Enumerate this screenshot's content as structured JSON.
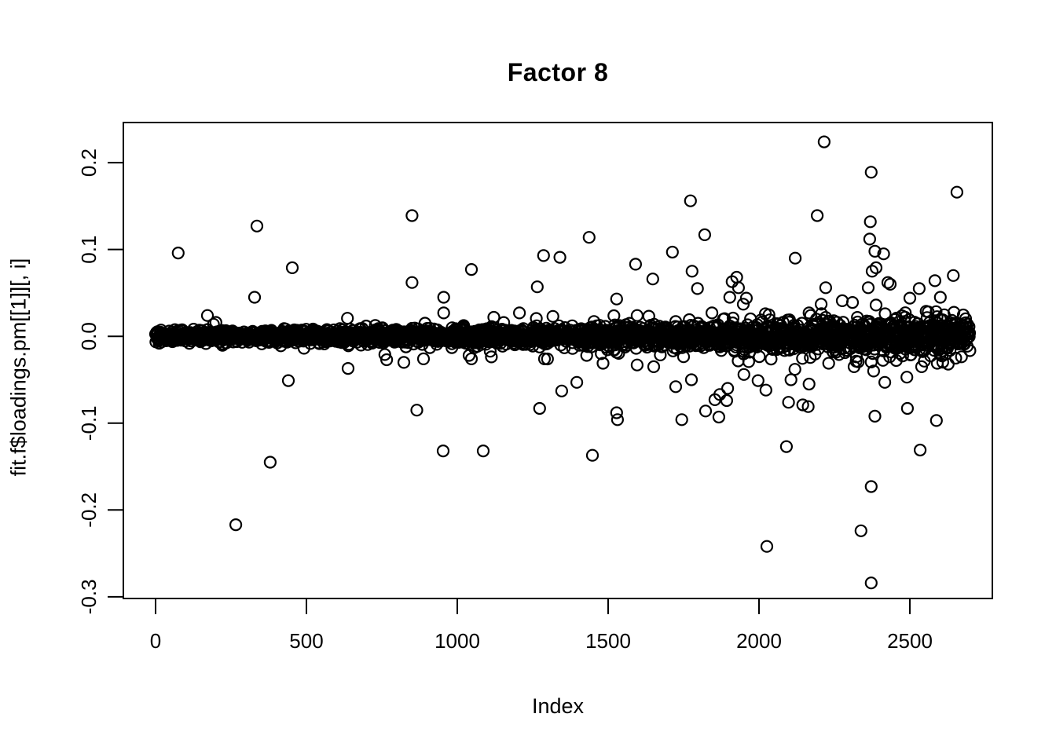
{
  "chart_data": {
    "type": "scatter",
    "title": "Factor 8",
    "xlabel": "Index",
    "ylabel": "fit.f$loadings.pm[[1]][, i]",
    "xlim": [
      0,
      2700
    ],
    "ylim": [
      -0.3,
      0.225
    ],
    "x_ticks": [
      0,
      500,
      1000,
      1500,
      2000,
      2500
    ],
    "x_tick_labels": [
      "0",
      "500",
      "1000",
      "1500",
      "2000",
      "2500"
    ],
    "y_ticks": [
      0.2,
      0.1,
      0.0,
      -0.1,
      -0.2,
      -0.3
    ],
    "y_tick_labels": [
      "0.2",
      "0.1",
      "0.0",
      "-0.1",
      "-0.2",
      "-0.3"
    ],
    "grid": false,
    "legend": null,
    "axis_color": "#000000",
    "marker": {
      "shape": "open-circle",
      "color": "#000000",
      "radius_px": 7,
      "stroke_px": 2.2
    },
    "dense_band": {
      "n": 2700,
      "x_start": 0,
      "x_end": 2700,
      "center": 0.0,
      "sd_base": 0.0035,
      "sd_growth": 0.007,
      "sd_power": 1.8,
      "tail_prob": 0.06,
      "tail_mult": 2.4,
      "clamp": 0.03,
      "seed": 42,
      "description": "~2700 posterior-mean loadings tightly clustered around 0; vertical spread grows with index"
    },
    "outliers": [
      [
        75,
        0.096
      ],
      [
        172,
        0.024
      ],
      [
        200,
        0.016
      ],
      [
        266,
        -0.217
      ],
      [
        328,
        0.045
      ],
      [
        336,
        0.127
      ],
      [
        380,
        -0.145
      ],
      [
        440,
        -0.051
      ],
      [
        453,
        0.079
      ],
      [
        638,
        -0.037
      ],
      [
        760,
        -0.021
      ],
      [
        766,
        -0.027
      ],
      [
        823,
        -0.03
      ],
      [
        850,
        0.139
      ],
      [
        850,
        0.062
      ],
      [
        866,
        -0.085
      ],
      [
        888,
        -0.026
      ],
      [
        909,
        -0.013
      ],
      [
        953,
        -0.132
      ],
      [
        955,
        0.045
      ],
      [
        955,
        0.027
      ],
      [
        982,
        -0.013
      ],
      [
        1039,
        -0.022
      ],
      [
        1047,
        0.077
      ],
      [
        1047,
        -0.026
      ],
      [
        1086,
        -0.132
      ],
      [
        1206,
        0.027
      ],
      [
        1265,
        0.057
      ],
      [
        1273,
        -0.083
      ],
      [
        1286,
        0.093
      ],
      [
        1317,
        0.023
      ],
      [
        1340,
        0.091
      ],
      [
        1346,
        -0.063
      ],
      [
        1382,
        -0.014
      ],
      [
        1396,
        -0.053
      ],
      [
        1429,
        -0.022
      ],
      [
        1437,
        0.114
      ],
      [
        1448,
        -0.137
      ],
      [
        1477,
        -0.02
      ],
      [
        1483,
        -0.031
      ],
      [
        1528,
        0.043
      ],
      [
        1528,
        -0.088
      ],
      [
        1531,
        -0.096
      ],
      [
        1591,
        0.083
      ],
      [
        1596,
        0.024
      ],
      [
        1596,
        -0.033
      ],
      [
        1648,
        0.066
      ],
      [
        1651,
        -0.035
      ],
      [
        1713,
        0.097
      ],
      [
        1724,
        -0.058
      ],
      [
        1744,
        -0.096
      ],
      [
        1773,
        0.156
      ],
      [
        1776,
        -0.05
      ],
      [
        1778,
        0.075
      ],
      [
        1796,
        0.055
      ],
      [
        1820,
        0.117
      ],
      [
        1823,
        -0.086
      ],
      [
        1844,
        0.027
      ],
      [
        1854,
        -0.073
      ],
      [
        1867,
        -0.093
      ],
      [
        1870,
        -0.067
      ],
      [
        1893,
        -0.074
      ],
      [
        1896,
        -0.06
      ],
      [
        1903,
        0.045
      ],
      [
        1911,
        0.063
      ],
      [
        1914,
        0.021
      ],
      [
        1926,
        0.068
      ],
      [
        1932,
        0.056
      ],
      [
        1948,
        0.037
      ],
      [
        1950,
        -0.044
      ],
      [
        1958,
        0.044
      ],
      [
        1997,
        -0.051
      ],
      [
        2021,
        0.026
      ],
      [
        2023,
        -0.062
      ],
      [
        2026,
        -0.242
      ],
      [
        2091,
        -0.127
      ],
      [
        2098,
        -0.076
      ],
      [
        2101,
        0.019
      ],
      [
        2106,
        -0.05
      ],
      [
        2119,
        -0.038
      ],
      [
        2120,
        0.09
      ],
      [
        2145,
        -0.079
      ],
      [
        2163,
        -0.081
      ],
      [
        2166,
        0.027
      ],
      [
        2166,
        -0.055
      ],
      [
        2171,
        0.024
      ],
      [
        2193,
        0.139
      ],
      [
        2206,
        0.037
      ],
      [
        2216,
        0.224
      ],
      [
        2221,
        0.056
      ],
      [
        2229,
        0.017
      ],
      [
        2231,
        -0.031
      ],
      [
        2276,
        0.041
      ],
      [
        2310,
        0.039
      ],
      [
        2315,
        -0.035
      ],
      [
        2338,
        -0.224
      ],
      [
        2362,
        0.056
      ],
      [
        2367,
        0.112
      ],
      [
        2369,
        0.132
      ],
      [
        2372,
        0.189
      ],
      [
        2372,
        -0.284
      ],
      [
        2372,
        -0.173
      ],
      [
        2375,
        0.075
      ],
      [
        2380,
        -0.04
      ],
      [
        2384,
        0.098
      ],
      [
        2384,
        -0.092
      ],
      [
        2388,
        0.079
      ],
      [
        2388,
        0.036
      ],
      [
        2413,
        0.095
      ],
      [
        2417,
        -0.053
      ],
      [
        2427,
        0.062
      ],
      [
        2435,
        0.06
      ],
      [
        2484,
        0.022
      ],
      [
        2490,
        -0.047
      ],
      [
        2492,
        -0.083
      ],
      [
        2500,
        0.044
      ],
      [
        2531,
        0.055
      ],
      [
        2534,
        -0.131
      ],
      [
        2539,
        -0.035
      ],
      [
        2583,
        0.064
      ],
      [
        2583,
        0.018
      ],
      [
        2588,
        -0.097
      ],
      [
        2591,
        -0.031
      ],
      [
        2601,
        0.045
      ],
      [
        2609,
        0.019
      ],
      [
        2627,
        -0.032
      ],
      [
        2644,
        0.07
      ],
      [
        2653,
        0.01
      ],
      [
        2656,
        0.166
      ]
    ]
  },
  "frame": {
    "background": "#ffffff",
    "box_color": "#000000"
  }
}
